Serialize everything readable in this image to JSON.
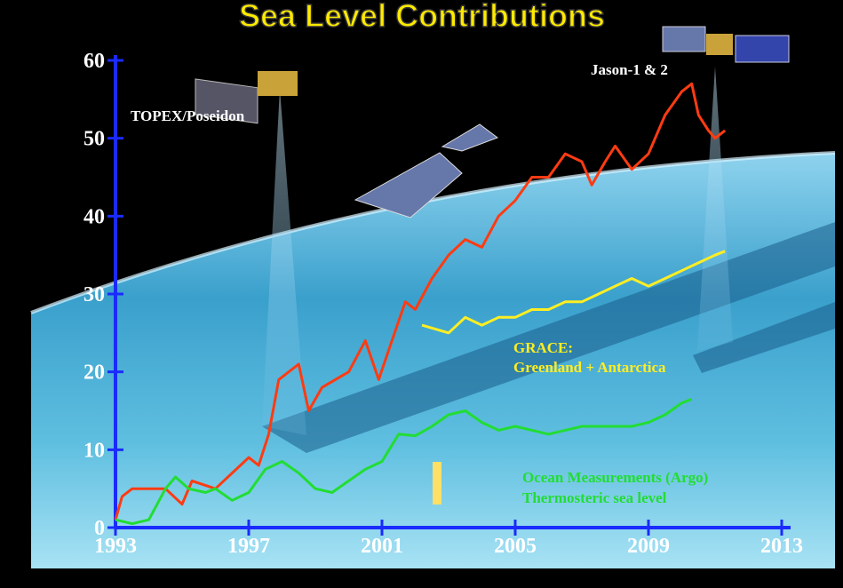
{
  "chart_data": {
    "type": "line",
    "title": "Sea Level Contributions",
    "xlim": [
      1993,
      2013
    ],
    "xticks": [
      1993,
      1997,
      2001,
      2005,
      2009,
      2013
    ],
    "ylim": [
      0,
      60
    ],
    "yticks": [
      0,
      10,
      20,
      30,
      40,
      50,
      60
    ],
    "annotations": [
      "TOPEX/Poseidon",
      "Jason-1 & 2",
      "GRACE:",
      "Greenland + Antarctica",
      "Ocean Measurements (Argo)",
      "Thermosteric sea level"
    ],
    "series": [
      {
        "color": "#ff3b12",
        "x": [
          1993.0,
          1993.2,
          1993.5,
          1994.0,
          1994.5,
          1995.0,
          1995.3,
          1996.0,
          1996.5,
          1997.0,
          1997.3,
          1997.6,
          1997.9,
          1998.2,
          1998.5,
          1998.8,
          1999.2,
          1999.6,
          2000.0,
          2000.5,
          2000.9,
          2001.3,
          2001.7,
          2002.0,
          2002.5,
          2003.0,
          2003.5,
          2004.0,
          2004.5,
          2005.0,
          2005.5,
          2006.0,
          2006.5,
          2007.0,
          2007.3,
          2007.7,
          2008.0,
          2008.5,
          2009.0,
          2009.5,
          2010.0,
          2010.3,
          2010.5,
          2010.8,
          2011.0,
          2011.3
        ],
        "values": [
          1,
          4,
          5,
          5,
          5,
          3,
          6,
          5,
          7,
          9,
          8,
          12,
          19,
          20,
          21,
          15,
          18,
          19,
          20,
          24,
          19,
          24,
          29,
          28,
          32,
          35,
          37,
          36,
          40,
          42,
          45,
          45,
          48,
          47,
          44,
          47,
          49,
          46,
          48,
          53,
          56,
          57,
          53,
          51,
          50,
          51
        ]
      },
      {
        "color": "#ffee22",
        "x": [
          2002.2,
          2003.0,
          2003.5,
          2004.0,
          2004.5,
          2005.0,
          2005.5,
          2006.0,
          2006.5,
          2007.0,
          2007.5,
          2008.0,
          2008.5,
          2009.0,
          2009.5,
          2010.0,
          2010.5,
          2011.0,
          2011.3
        ],
        "values": [
          26,
          25,
          27,
          26,
          27,
          27,
          28,
          28,
          29,
          29,
          30,
          31,
          32,
          31,
          32,
          33,
          34,
          35,
          35.5
        ]
      },
      {
        "color": "#22dd33",
        "x": [
          1993.0,
          1993.5,
          1994.0,
          1994.5,
          1994.8,
          1995.2,
          1995.7,
          1996.0,
          1996.5,
          1997.0,
          1997.5,
          1998.0,
          1998.5,
          1999.0,
          1999.5,
          2000.0,
          2000.5,
          2001.0,
          2001.5,
          2002.0,
          2002.5,
          2003.0,
          2003.5,
          2004.0,
          2004.5,
          2005.0,
          2005.5,
          2006.0,
          2006.5,
          2007.0,
          2007.5,
          2008.0,
          2008.5,
          2009.0,
          2009.5,
          2010.0,
          2010.3
        ],
        "values": [
          1,
          0.5,
          1,
          5,
          6.5,
          5,
          4.5,
          5,
          3.5,
          4.5,
          7.5,
          8.5,
          7,
          5,
          4.5,
          6,
          7.5,
          8.5,
          12,
          11.8,
          13,
          14.5,
          15,
          13.5,
          12.5,
          13,
          12.5,
          12,
          12.5,
          13,
          13,
          13,
          13,
          13.5,
          14.5,
          16,
          16.5
        ]
      }
    ]
  }
}
